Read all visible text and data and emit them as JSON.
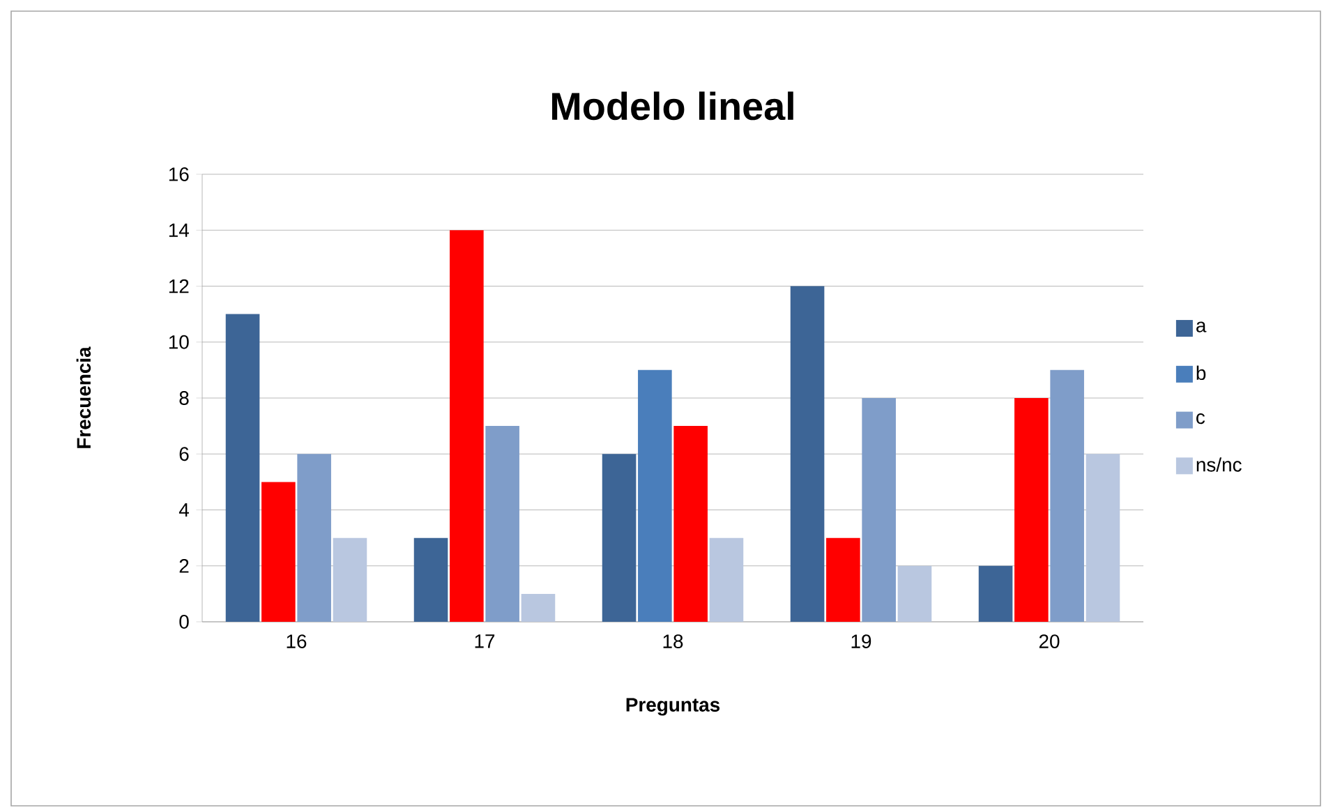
{
  "chart_data": {
    "type": "bar",
    "title": "Modelo lineal",
    "xlabel": "Preguntas",
    "ylabel": "Frecuencia",
    "categories": [
      "16",
      "17",
      "18",
      "19",
      "20"
    ],
    "series": [
      {
        "name": "a",
        "color": "#3d6596",
        "values": [
          11,
          3,
          6,
          12,
          2
        ]
      },
      {
        "name": "b",
        "color": "#4a7ebb",
        "colors": [
          "#ff0000",
          "#ff0000",
          "#4a7ebb",
          "#ff0000",
          "#ff0000"
        ],
        "values": [
          5,
          14,
          9,
          3,
          8
        ]
      },
      {
        "name": "c",
        "color": "#7f9dc9",
        "colors": [
          "#7f9dc9",
          "#7f9dc9",
          "#ff0000",
          "#7f9dc9",
          "#7f9dc9"
        ],
        "values": [
          6,
          7,
          7,
          8,
          9
        ]
      },
      {
        "name": "ns/nc",
        "color": "#b9c7e0",
        "values": [
          3,
          1,
          3,
          2,
          6
        ]
      }
    ],
    "ylim": [
      0,
      16
    ],
    "yticks": [
      0,
      2,
      4,
      6,
      8,
      10,
      12,
      14,
      16
    ],
    "grid": "y",
    "legend": "right"
  }
}
